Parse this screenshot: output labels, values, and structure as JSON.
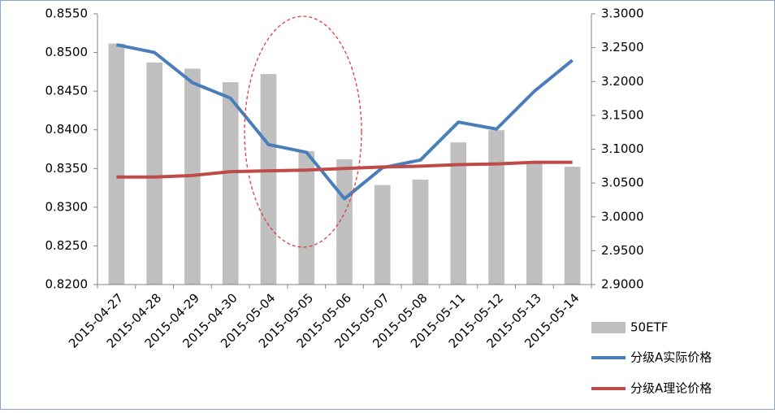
{
  "chart_data": {
    "type": "bar_line",
    "categories": [
      "2015-04-27",
      "2015-04-28",
      "2015-04-29",
      "2015-04-30",
      "2015-05-04",
      "2015-05-05",
      "2015-05-06",
      "2015-05-07",
      "2015-05-08",
      "2015-05-11",
      "2015-05-12",
      "2015-05-13",
      "2015-05-14"
    ],
    "series": [
      {
        "name": "50ETF",
        "type": "bar",
        "axis": "y2",
        "color": "#bfbfbf",
        "values": [
          3.256,
          3.228,
          3.219,
          3.199,
          3.211,
          3.097,
          3.085,
          3.047,
          3.055,
          3.11,
          3.128,
          3.081,
          3.074
        ]
      },
      {
        "name": "分级A实际价格",
        "type": "line",
        "axis": "y",
        "color": "#4a7ebb",
        "values": [
          0.851,
          0.85,
          0.8461,
          0.8441,
          0.8381,
          0.8371,
          0.8311,
          0.8351,
          0.8361,
          0.841,
          0.8401,
          0.845,
          0.849
        ]
      },
      {
        "name": "分级A理论价格",
        "type": "line",
        "axis": "y",
        "color": "#be4b48",
        "values": [
          0.8339,
          0.8339,
          0.8341,
          0.8346,
          0.8347,
          0.8348,
          0.835,
          0.8352,
          0.8353,
          0.8355,
          0.8356,
          0.8358,
          0.8358
        ]
      }
    ],
    "ylim": [
      0.82,
      0.855
    ],
    "yticks": [
      {
        "value": 0.82,
        "label": "0.8200"
      },
      {
        "value": 0.825,
        "label": "0.8250"
      },
      {
        "value": 0.83,
        "label": "0.8300"
      },
      {
        "value": 0.835,
        "label": "0.8350"
      },
      {
        "value": 0.84,
        "label": "0.8400"
      },
      {
        "value": 0.845,
        "label": "0.8450"
      },
      {
        "value": 0.85,
        "label": "0.8500"
      },
      {
        "value": 0.855,
        "label": "0.8550"
      }
    ],
    "y2lim": [
      2.9,
      3.3
    ],
    "y2ticks": [
      {
        "value": 2.9,
        "label": "2.9000"
      },
      {
        "value": 2.95,
        "label": "2.9500"
      },
      {
        "value": 3.0,
        "label": "3.0000"
      },
      {
        "value": 3.05,
        "label": "3.0500"
      },
      {
        "value": 3.1,
        "label": "3.1000"
      },
      {
        "value": 3.15,
        "label": "3.1500"
      },
      {
        "value": 3.2,
        "label": "3.2000"
      },
      {
        "value": 3.25,
        "label": "3.2500"
      },
      {
        "value": 3.3,
        "label": "3.3000"
      }
    ],
    "grid": false,
    "legend": "bottom-right"
  }
}
